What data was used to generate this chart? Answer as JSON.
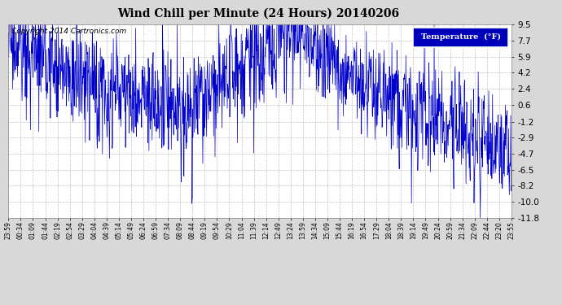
{
  "title": "Wind Chill per Minute (24 Hours) 20140206",
  "copyright_text": "Copyright 2014 Cartronics.com",
  "legend_label": "Temperature  (°F)",
  "yticks": [
    9.5,
    7.7,
    5.9,
    4.2,
    2.4,
    0.6,
    -1.2,
    -2.9,
    -4.7,
    -6.5,
    -8.2,
    -10.0,
    -11.8
  ],
  "ymin": -11.8,
  "ymax": 9.5,
  "line_color": "#0000cc",
  "background_color": "#d8d8d8",
  "plot_bg_color": "#ffffff",
  "grid_color": "#bbbbbb",
  "title_color": "#000000",
  "legend_bg": "#0000bb",
  "legend_fg": "#ffffff",
  "x_tick_labels": [
    "23:59",
    "00:34",
    "01:09",
    "01:44",
    "02:19",
    "02:54",
    "03:29",
    "04:04",
    "04:39",
    "05:14",
    "05:49",
    "06:24",
    "06:59",
    "07:34",
    "08:09",
    "08:44",
    "09:19",
    "09:54",
    "10:29",
    "11:04",
    "11:39",
    "12:14",
    "12:49",
    "13:24",
    "13:59",
    "14:34",
    "15:09",
    "15:44",
    "16:19",
    "16:54",
    "17:29",
    "18:04",
    "18:39",
    "19:14",
    "19:49",
    "20:24",
    "20:59",
    "21:34",
    "22:09",
    "22:44",
    "23:20",
    "23:55"
  ],
  "base_curve": {
    "t0": 0.0,
    "v0": 7.8,
    "t1": 1.5,
    "v1": 5.5,
    "t2": 7.4,
    "v2": 0.4,
    "t3": 8.5,
    "v3": -0.5,
    "t4": 13.4,
    "v4": 9.5,
    "t5": 16.0,
    "v5": 4.0,
    "t6": 19.0,
    "v6": 0.4,
    "t7": 24.0,
    "v7": -4.7
  },
  "noise_std": 2.8,
  "spike_count": 250,
  "spike_std": 2.5,
  "seed": 17
}
